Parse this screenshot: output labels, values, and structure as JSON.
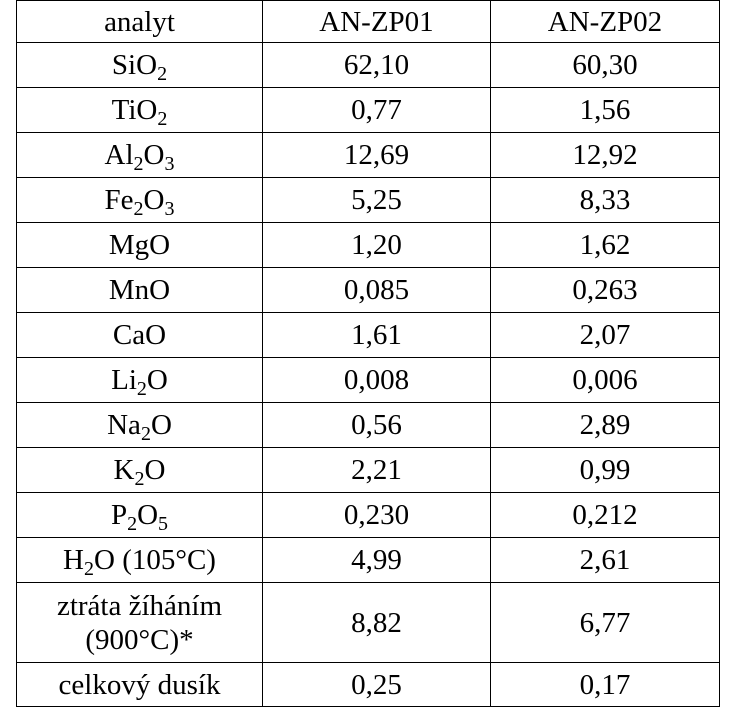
{
  "header": {
    "analyte": "analyt",
    "col1": "AN-ZP01",
    "col2": "AN-ZP02"
  },
  "rows": [
    {
      "label_parts": [
        {
          "t": "SiO"
        },
        {
          "t": "2",
          "sub": true
        }
      ],
      "v1": "62,10",
      "v2": "60,30"
    },
    {
      "label_parts": [
        {
          "t": "TiO"
        },
        {
          "t": "2",
          "sub": true
        }
      ],
      "v1": "0,77",
      "v2": "1,56"
    },
    {
      "label_parts": [
        {
          "t": "Al"
        },
        {
          "t": "2",
          "sub": true
        },
        {
          "t": "O"
        },
        {
          "t": "3",
          "sub": true
        }
      ],
      "v1": "12,69",
      "v2": "12,92"
    },
    {
      "label_parts": [
        {
          "t": "Fe"
        },
        {
          "t": "2",
          "sub": true
        },
        {
          "t": "O"
        },
        {
          "t": "3",
          "sub": true
        }
      ],
      "v1": "5,25",
      "v2": "8,33"
    },
    {
      "label_parts": [
        {
          "t": "MgO"
        }
      ],
      "v1": "1,20",
      "v2": "1,62"
    },
    {
      "label_parts": [
        {
          "t": "MnO"
        }
      ],
      "v1": "0,085",
      "v2": "0,263"
    },
    {
      "label_parts": [
        {
          "t": "CaO"
        }
      ],
      "v1": "1,61",
      "v2": "2,07"
    },
    {
      "label_parts": [
        {
          "t": "Li"
        },
        {
          "t": "2",
          "sub": true
        },
        {
          "t": "O"
        }
      ],
      "v1": "0,008",
      "v2": "0,006"
    },
    {
      "label_parts": [
        {
          "t": "Na"
        },
        {
          "t": "2",
          "sub": true
        },
        {
          "t": "O"
        }
      ],
      "v1": "0,56",
      "v2": "2,89"
    },
    {
      "label_parts": [
        {
          "t": "K"
        },
        {
          "t": "2",
          "sub": true
        },
        {
          "t": "O"
        }
      ],
      "v1": "2,21",
      "v2": "0,99"
    },
    {
      "label_parts": [
        {
          "t": "P"
        },
        {
          "t": "2",
          "sub": true
        },
        {
          "t": "O"
        },
        {
          "t": "5",
          "sub": true
        }
      ],
      "v1": "0,230",
      "v2": "0,212"
    },
    {
      "label_parts": [
        {
          "t": "H"
        },
        {
          "t": "2",
          "sub": true
        },
        {
          "t": "O (105°C)"
        }
      ],
      "v1": "4,99",
      "v2": "2,61"
    },
    {
      "label_lines": [
        "ztráta žíháním",
        "(900°C)*"
      ],
      "v1": "8,82",
      "v2": "6,77"
    },
    {
      "label_parts": [
        {
          "t": "celkový dusík"
        }
      ],
      "v1": "0,25",
      "v2": "0,17"
    }
  ]
}
